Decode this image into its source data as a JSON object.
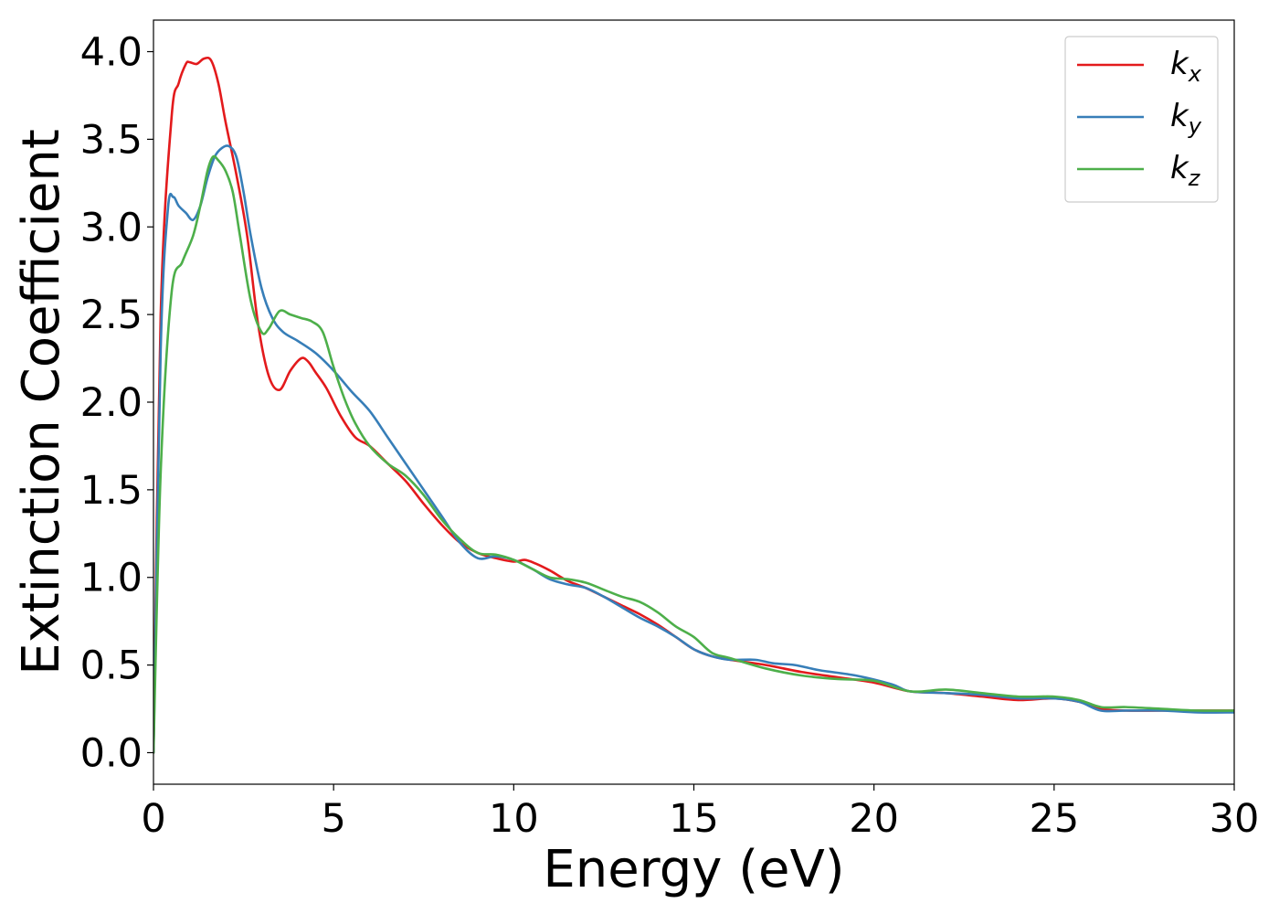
{
  "chart_data": {
    "type": "line",
    "title": "",
    "xlabel": "Energy (eV)",
    "ylabel": "Extinction Coefficient",
    "xlim": [
      0,
      30
    ],
    "ylim": [
      -0.18,
      4.18
    ],
    "xticks": [
      {
        "value": 0,
        "label": "0"
      },
      {
        "value": 5,
        "label": "5"
      },
      {
        "value": 10,
        "label": "10"
      },
      {
        "value": 15,
        "label": "15"
      },
      {
        "value": 20,
        "label": "20"
      },
      {
        "value": 25,
        "label": "25"
      },
      {
        "value": 30,
        "label": "30"
      }
    ],
    "yticks": [
      {
        "value": 0.0,
        "label": "0.0"
      },
      {
        "value": 0.5,
        "label": "0.5"
      },
      {
        "value": 1.0,
        "label": "1.0"
      },
      {
        "value": 1.5,
        "label": "1.5"
      },
      {
        "value": 2.0,
        "label": "2.0"
      },
      {
        "value": 2.5,
        "label": "2.5"
      },
      {
        "value": 3.0,
        "label": "3.0"
      },
      {
        "value": 3.5,
        "label": "3.5"
      },
      {
        "value": 4.0,
        "label": "4.0"
      }
    ],
    "grid": false,
    "legend_position": "top-right",
    "series": [
      {
        "name": "k_x",
        "label_base": "k",
        "label_sub": "x",
        "color": "#e31a1c",
        "x": [
          0,
          0.2,
          0.5,
          0.7,
          0.9,
          1.0,
          1.2,
          1.4,
          1.6,
          1.8,
          2.0,
          2.3,
          2.6,
          2.9,
          3.2,
          3.5,
          3.8,
          4.1,
          4.3,
          4.5,
          4.8,
          5.2,
          5.6,
          6.0,
          6.5,
          7.0,
          7.5,
          8.0,
          8.5,
          9.0,
          9.5,
          10.0,
          10.3,
          10.6,
          11.0,
          11.5,
          12.0,
          12.5,
          13.0,
          13.5,
          14.0,
          14.5,
          15.0,
          15.5,
          16.0,
          17.0,
          18.0,
          19.0,
          20.0,
          21.0,
          22.0,
          23.0,
          24.0,
          25.0,
          25.7,
          26.3,
          27.0,
          28.0,
          29.0,
          30.0
        ],
        "y": [
          0.0,
          2.5,
          3.62,
          3.82,
          3.93,
          3.94,
          3.93,
          3.96,
          3.95,
          3.82,
          3.6,
          3.3,
          2.95,
          2.45,
          2.15,
          2.07,
          2.18,
          2.25,
          2.23,
          2.17,
          2.08,
          1.92,
          1.8,
          1.75,
          1.65,
          1.55,
          1.42,
          1.3,
          1.2,
          1.14,
          1.11,
          1.09,
          1.1,
          1.08,
          1.04,
          0.98,
          0.94,
          0.89,
          0.84,
          0.79,
          0.73,
          0.66,
          0.59,
          0.55,
          0.53,
          0.5,
          0.46,
          0.43,
          0.4,
          0.35,
          0.34,
          0.32,
          0.3,
          0.31,
          0.29,
          0.25,
          0.24,
          0.24,
          0.24,
          0.24
        ]
      },
      {
        "name": "k_y",
        "label_base": "k",
        "label_sub": "y",
        "color": "#377eb8",
        "x": [
          0,
          0.2,
          0.4,
          0.55,
          0.7,
          0.9,
          1.1,
          1.3,
          1.5,
          1.7,
          1.9,
          2.1,
          2.3,
          2.5,
          2.7,
          3.0,
          3.3,
          3.6,
          4.0,
          4.5,
          5.0,
          5.5,
          6.0,
          6.5,
          7.0,
          7.5,
          8.0,
          8.5,
          9.0,
          9.5,
          10.0,
          10.5,
          11.0,
          11.5,
          12.0,
          12.5,
          13.0,
          13.5,
          14.0,
          14.5,
          15.0,
          15.5,
          16.0,
          16.7,
          17.2,
          17.8,
          18.5,
          19.5,
          20.5,
          21.0,
          22.0,
          23.0,
          24.0,
          25.0,
          25.7,
          26.3,
          27.0,
          28.0,
          29.0,
          30.0
        ],
        "y": [
          0.0,
          2.3,
          3.1,
          3.17,
          3.12,
          3.08,
          3.04,
          3.12,
          3.28,
          3.4,
          3.45,
          3.46,
          3.4,
          3.2,
          2.95,
          2.65,
          2.48,
          2.4,
          2.35,
          2.28,
          2.18,
          2.06,
          1.95,
          1.8,
          1.65,
          1.5,
          1.35,
          1.2,
          1.11,
          1.12,
          1.1,
          1.05,
          0.99,
          0.96,
          0.94,
          0.89,
          0.83,
          0.77,
          0.72,
          0.66,
          0.59,
          0.55,
          0.53,
          0.53,
          0.51,
          0.5,
          0.47,
          0.44,
          0.39,
          0.35,
          0.34,
          0.33,
          0.31,
          0.31,
          0.29,
          0.24,
          0.24,
          0.24,
          0.23,
          0.23
        ]
      },
      {
        "name": "k_z",
        "label_base": "k",
        "label_sub": "z",
        "color": "#4daf4a",
        "x": [
          0,
          0.2,
          0.5,
          0.8,
          1.1,
          1.3,
          1.5,
          1.65,
          1.8,
          2.0,
          2.2,
          2.4,
          2.7,
          3.0,
          3.2,
          3.5,
          3.8,
          4.1,
          4.4,
          4.7,
          5.0,
          5.3,
          5.6,
          6.0,
          6.5,
          7.0,
          7.5,
          8.0,
          8.5,
          9.0,
          9.5,
          10.0,
          10.5,
          11.0,
          11.5,
          12.0,
          12.5,
          13.0,
          13.5,
          14.0,
          14.5,
          15.0,
          15.5,
          16.0,
          17.0,
          18.0,
          19.0,
          20.0,
          21.0,
          22.0,
          23.0,
          24.0,
          25.0,
          25.7,
          26.3,
          27.0,
          28.0,
          29.0,
          30.0
        ],
        "y": [
          0.0,
          1.6,
          2.62,
          2.8,
          2.95,
          3.12,
          3.32,
          3.4,
          3.38,
          3.32,
          3.2,
          2.95,
          2.58,
          2.4,
          2.42,
          2.52,
          2.5,
          2.48,
          2.46,
          2.4,
          2.2,
          2.02,
          1.88,
          1.75,
          1.65,
          1.58,
          1.47,
          1.33,
          1.22,
          1.14,
          1.13,
          1.1,
          1.05,
          1.0,
          0.99,
          0.97,
          0.93,
          0.89,
          0.86,
          0.8,
          0.72,
          0.66,
          0.57,
          0.54,
          0.48,
          0.44,
          0.42,
          0.41,
          0.35,
          0.36,
          0.34,
          0.32,
          0.32,
          0.3,
          0.26,
          0.26,
          0.25,
          0.24,
          0.24
        ]
      }
    ]
  }
}
